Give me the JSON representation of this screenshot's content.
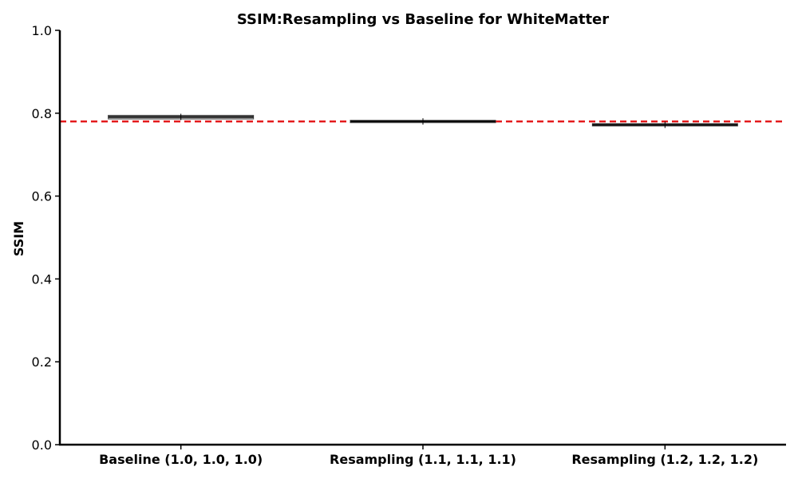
{
  "chart_data": {
    "type": "box",
    "title": "SSIM:Resampling vs Baseline for WhiteMatter",
    "xlabel": "",
    "ylabel": "SSIM",
    "ylim": [
      0.0,
      1.0
    ],
    "yticks": [
      "0.0",
      "0.2",
      "0.4",
      "0.6",
      "0.8",
      "1.0"
    ],
    "categories": [
      "Baseline (1.0, 1.0, 1.0)",
      "Resampling (1.1, 1.1, 1.1)",
      "Resampling (1.2, 1.2, 1.2)"
    ],
    "boxes": [
      {
        "q1": 0.788,
        "median": 0.791,
        "q3": 0.793,
        "mean": 0.791
      },
      {
        "q1": 0.779,
        "median": 0.78,
        "q3": 0.781,
        "mean": 0.78
      },
      {
        "q1": 0.771,
        "median": 0.772,
        "q3": 0.773,
        "mean": 0.772
      }
    ],
    "reference_line": {
      "y": 0.78,
      "style": "dashed",
      "color": "#e41a1c"
    },
    "grid": false,
    "legend": "none"
  }
}
